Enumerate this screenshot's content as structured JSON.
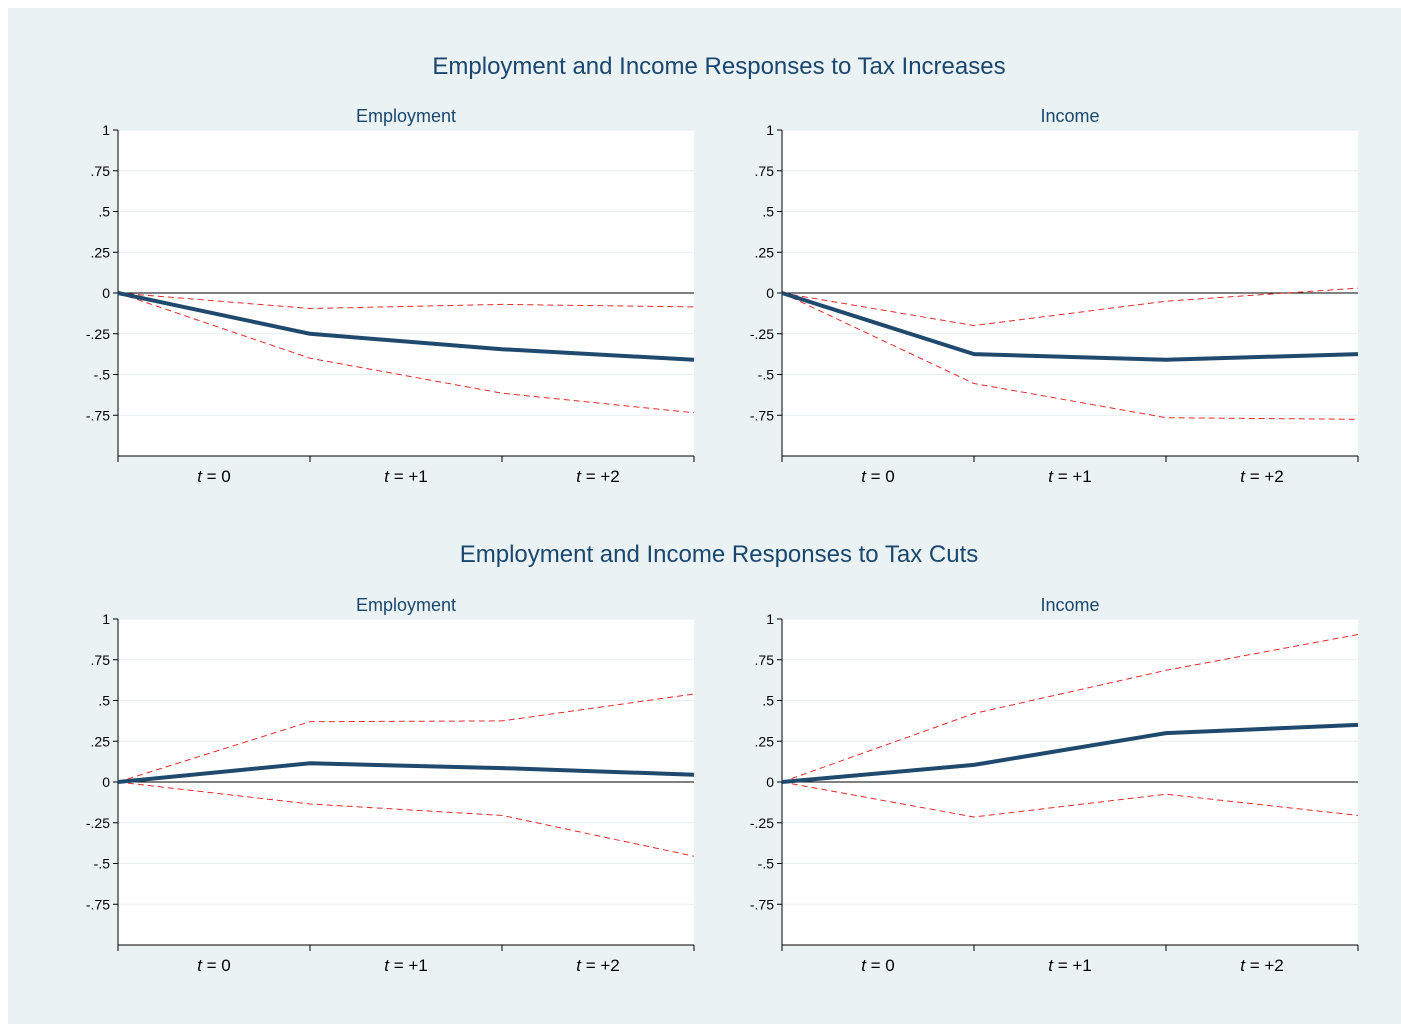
{
  "figure": {
    "sections": [
      {
        "title": "Employment and Income Responses to Tax Increases",
        "panels": [
          {
            "subtitle": "Employment",
            "chart_index": 0
          },
          {
            "subtitle": "Income",
            "chart_index": 1
          }
        ]
      },
      {
        "title": "Employment and Income Responses to Tax Cuts",
        "panels": [
          {
            "subtitle": "Employment",
            "chart_index": 2
          },
          {
            "subtitle": "Income",
            "chart_index": 3
          }
        ]
      }
    ],
    "colors": {
      "background": "#eaf2f3",
      "plot_area": "#ffffff",
      "title": "#1a476f",
      "point_estimate": "#1f4a6e",
      "confidence_band": "#e32b2b",
      "gridline": "#e8eef0",
      "zero_line": "#000000"
    }
  },
  "chart_data": [
    {
      "type": "line",
      "title": "Employment",
      "group": "Employment and Income Responses to Tax Increases",
      "x_tick_labels": [
        {
          "var": "t",
          "rest": " = 0"
        },
        {
          "var": "t",
          "rest": " = +1"
        },
        {
          "var": "t",
          "rest": " = +2"
        }
      ],
      "x_tick_positions": [
        0.5,
        1.5,
        2.5
      ],
      "x": [
        0,
        1,
        2,
        3
      ],
      "yticks": [
        1,
        0.75,
        0.5,
        0.25,
        0,
        -0.25,
        -0.5,
        -0.75
      ],
      "ytick_labels": [
        "1",
        ".75",
        ".5",
        ".25",
        "0",
        "-.25",
        "-.5",
        "-.75"
      ],
      "ylim": [
        -1,
        1
      ],
      "xlim": [
        0,
        3
      ],
      "grid": true,
      "series": [
        {
          "role": "estimate",
          "style": "solid",
          "values": [
            0,
            -0.25,
            -0.345,
            -0.41
          ]
        },
        {
          "role": "upper_bound",
          "style": "dashed",
          "values": [
            0,
            -0.095,
            -0.07,
            -0.085
          ]
        },
        {
          "role": "lower_bound",
          "style": "dashed",
          "values": [
            0,
            -0.4,
            -0.615,
            -0.735
          ]
        }
      ]
    },
    {
      "type": "line",
      "title": "Income",
      "group": "Employment and Income Responses to Tax Increases",
      "x_tick_labels": [
        {
          "var": "t",
          "rest": " = 0"
        },
        {
          "var": "t",
          "rest": " = +1"
        },
        {
          "var": "t",
          "rest": " = +2"
        }
      ],
      "x_tick_positions": [
        0.5,
        1.5,
        2.5
      ],
      "x": [
        0,
        1,
        2,
        3
      ],
      "yticks": [
        1,
        0.75,
        0.5,
        0.25,
        0,
        -0.25,
        -0.5,
        -0.75
      ],
      "ytick_labels": [
        "1",
        ".75",
        ".5",
        ".25",
        "0",
        "-.25",
        "-.5",
        "-.75"
      ],
      "ylim": [
        -1,
        1
      ],
      "xlim": [
        0,
        3
      ],
      "grid": true,
      "series": [
        {
          "role": "estimate",
          "style": "solid",
          "values": [
            0,
            -0.375,
            -0.41,
            -0.375
          ]
        },
        {
          "role": "upper_bound",
          "style": "dashed",
          "values": [
            0,
            -0.2,
            -0.05,
            0.03
          ]
        },
        {
          "role": "lower_bound",
          "style": "dashed",
          "values": [
            0,
            -0.555,
            -0.765,
            -0.775
          ]
        }
      ]
    },
    {
      "type": "line",
      "title": "Employment",
      "group": "Employment and Income Responses to Tax Cuts",
      "x_tick_labels": [
        {
          "var": "t",
          "rest": " = 0"
        },
        {
          "var": "t",
          "rest": " = +1"
        },
        {
          "var": "t",
          "rest": " = +2"
        }
      ],
      "x_tick_positions": [
        0.5,
        1.5,
        2.5
      ],
      "x": [
        0,
        1,
        2,
        3
      ],
      "yticks": [
        1,
        0.75,
        0.5,
        0.25,
        0,
        -0.25,
        -0.5,
        -0.75
      ],
      "ytick_labels": [
        "1",
        ".75",
        ".5",
        ".25",
        "0",
        "-.25",
        "-.5",
        "-.75"
      ],
      "ylim": [
        -1,
        1
      ],
      "xlim": [
        0,
        3
      ],
      "grid": true,
      "series": [
        {
          "role": "estimate",
          "style": "solid",
          "values": [
            0,
            0.115,
            0.085,
            0.045
          ]
        },
        {
          "role": "upper_bound",
          "style": "dashed",
          "values": [
            0,
            0.37,
            0.375,
            0.54
          ]
        },
        {
          "role": "lower_bound",
          "style": "dashed",
          "values": [
            0,
            -0.135,
            -0.205,
            -0.455
          ]
        }
      ]
    },
    {
      "type": "line",
      "title": "Income",
      "group": "Employment and Income Responses to Tax Cuts",
      "x_tick_labels": [
        {
          "var": "t",
          "rest": " = 0"
        },
        {
          "var": "t",
          "rest": " = +1"
        },
        {
          "var": "t",
          "rest": " = +2"
        }
      ],
      "x_tick_positions": [
        0.5,
        1.5,
        2.5
      ],
      "x": [
        0,
        1,
        2,
        3
      ],
      "yticks": [
        1,
        0.75,
        0.5,
        0.25,
        0,
        -0.25,
        -0.5,
        -0.75
      ],
      "ytick_labels": [
        "1",
        ".75",
        ".5",
        ".25",
        "0",
        "-.25",
        "-.5",
        "-.75"
      ],
      "ylim": [
        -1,
        1
      ],
      "xlim": [
        0,
        3
      ],
      "grid": true,
      "series": [
        {
          "role": "estimate",
          "style": "solid",
          "values": [
            0,
            0.105,
            0.3,
            0.35
          ]
        },
        {
          "role": "upper_bound",
          "style": "dashed",
          "values": [
            0,
            0.42,
            0.685,
            0.905
          ]
        },
        {
          "role": "lower_bound",
          "style": "dashed",
          "values": [
            0,
            -0.215,
            -0.075,
            -0.205
          ]
        }
      ]
    }
  ]
}
